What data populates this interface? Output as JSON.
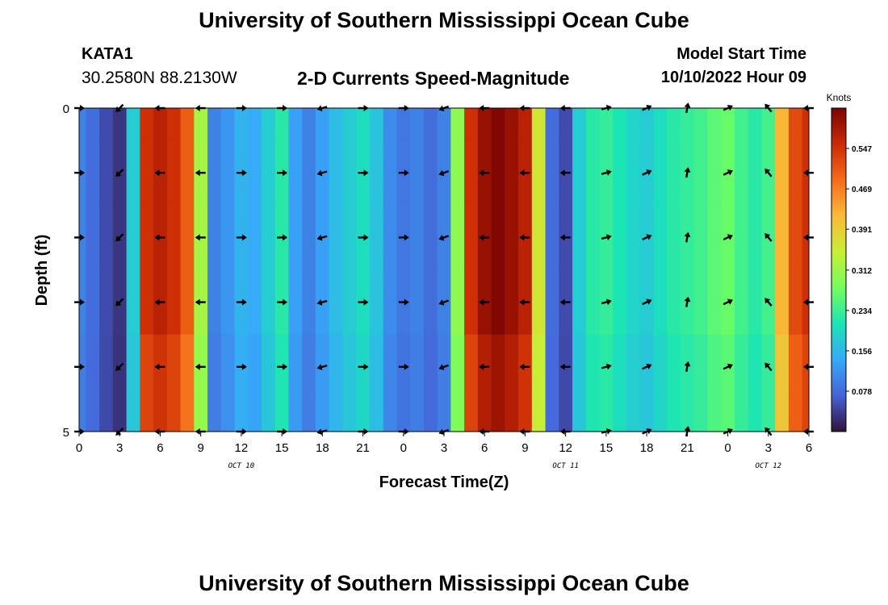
{
  "header": {
    "title": "University of Southern Mississippi Ocean Cube",
    "station_id": "KATA1",
    "coordinates": "30.2580N  88.2130W",
    "subtitle": "2-D Currents Speed-Magnitude",
    "model_start_label": "Model Start Time",
    "model_start_value": "10/10/2022 Hour 09"
  },
  "footer": {
    "title": "University of Southern Mississippi Ocean Cube"
  },
  "colors": {
    "colormap": [
      "#30123b",
      "#4662d7",
      "#36aaf9",
      "#1ae4b6",
      "#72fe5e",
      "#c8ef34",
      "#faba39",
      "#f66b19",
      "#ca2a04",
      "#7a0403"
    ],
    "arrow": "#000000",
    "axis": "#000000"
  },
  "chart_data": {
    "type": "heatmap",
    "title": "2-D Currents Speed-Magnitude",
    "xlabel": "Forecast Time(Z)",
    "ylabel": "Depth (ft)",
    "xlim": [
      0,
      54
    ],
    "ylim": [
      0,
      5
    ],
    "x_ticks": [
      0,
      3,
      6,
      9,
      12,
      15,
      18,
      21,
      24,
      27,
      30,
      33,
      36,
      39,
      42,
      45,
      48,
      51,
      54
    ],
    "x_tick_labels": [
      "0",
      "3",
      "6",
      "9",
      "12",
      "15",
      "18",
      "21",
      "0",
      "3",
      "6",
      "9",
      "12",
      "15",
      "18",
      "21",
      "0",
      "3",
      "6"
    ],
    "y_ticks": [
      0,
      5
    ],
    "y_tick_labels": [
      "0",
      "5"
    ],
    "date_labels": [
      {
        "hour": 12,
        "text": "OCT 10"
      },
      {
        "hour": 36,
        "text": "OCT 11"
      },
      {
        "hour": 51,
        "text": "OCT 12"
      }
    ],
    "colorbar": {
      "label": "Knots",
      "min": 0.0,
      "max": 0.625,
      "ticks": [
        0.078,
        0.156,
        0.234,
        0.312,
        0.391,
        0.469,
        0.547
      ]
    },
    "depth_rows": [
      0,
      1,
      2,
      3,
      4,
      5
    ],
    "speed_by_hour": [
      {
        "hour": 0,
        "speed": 0.1
      },
      {
        "hour": 1,
        "speed": 0.08
      },
      {
        "hour": 2,
        "speed": 0.05
      },
      {
        "hour": 3,
        "speed": 0.03
      },
      {
        "hour": 4,
        "speed": 0.18
      },
      {
        "hour": 5,
        "speed": 0.55
      },
      {
        "hour": 6,
        "speed": 0.57
      },
      {
        "hour": 7,
        "speed": 0.55
      },
      {
        "hour": 8,
        "speed": 0.5
      },
      {
        "hour": 9,
        "speed": 0.32
      },
      {
        "hour": 10,
        "speed": 0.1
      },
      {
        "hour": 11,
        "speed": 0.12
      },
      {
        "hour": 12,
        "speed": 0.15
      },
      {
        "hour": 13,
        "speed": 0.14
      },
      {
        "hour": 14,
        "speed": 0.18
      },
      {
        "hour": 15,
        "speed": 0.22
      },
      {
        "hour": 16,
        "speed": 0.13
      },
      {
        "hour": 17,
        "speed": 0.1
      },
      {
        "hour": 18,
        "speed": 0.13
      },
      {
        "hour": 19,
        "speed": 0.16
      },
      {
        "hour": 20,
        "speed": 0.18
      },
      {
        "hour": 21,
        "speed": 0.2
      },
      {
        "hour": 22,
        "speed": 0.17
      },
      {
        "hour": 23,
        "speed": 0.11
      },
      {
        "hour": 24,
        "speed": 0.09
      },
      {
        "hour": 25,
        "speed": 0.1
      },
      {
        "hour": 26,
        "speed": 0.08
      },
      {
        "hour": 27,
        "speed": 0.1
      },
      {
        "hour": 28,
        "speed": 0.3
      },
      {
        "hour": 29,
        "speed": 0.55
      },
      {
        "hour": 30,
        "speed": 0.6
      },
      {
        "hour": 31,
        "speed": 0.62
      },
      {
        "hour": 32,
        "speed": 0.6
      },
      {
        "hour": 33,
        "speed": 0.57
      },
      {
        "hour": 34,
        "speed": 0.36
      },
      {
        "hour": 35,
        "speed": 0.08
      },
      {
        "hour": 36,
        "speed": 0.05
      },
      {
        "hour": 37,
        "speed": 0.18
      },
      {
        "hour": 38,
        "speed": 0.22
      },
      {
        "hour": 39,
        "speed": 0.23
      },
      {
        "hour": 40,
        "speed": 0.21
      },
      {
        "hour": 41,
        "speed": 0.19
      },
      {
        "hour": 42,
        "speed": 0.18
      },
      {
        "hour": 43,
        "speed": 0.2
      },
      {
        "hour": 44,
        "speed": 0.22
      },
      {
        "hour": 45,
        "speed": 0.23
      },
      {
        "hour": 46,
        "speed": 0.24
      },
      {
        "hour": 47,
        "speed": 0.26
      },
      {
        "hour": 48,
        "speed": 0.27
      },
      {
        "hour": 49,
        "speed": 0.24
      },
      {
        "hour": 50,
        "speed": 0.22
      },
      {
        "hour": 51,
        "speed": 0.24
      },
      {
        "hour": 52,
        "speed": 0.42
      },
      {
        "hour": 53,
        "speed": 0.52
      },
      {
        "hour": 54,
        "speed": 0.55
      }
    ],
    "arrows": [
      {
        "hour": 0,
        "dir_deg": 0
      },
      {
        "hour": 3,
        "dir_deg": 225
      },
      {
        "hour": 6,
        "dir_deg": 180
      },
      {
        "hour": 9,
        "dir_deg": 180
      },
      {
        "hour": 12,
        "dir_deg": 0
      },
      {
        "hour": 15,
        "dir_deg": 0
      },
      {
        "hour": 18,
        "dir_deg": 195
      },
      {
        "hour": 21,
        "dir_deg": 0
      },
      {
        "hour": 24,
        "dir_deg": 0
      },
      {
        "hour": 27,
        "dir_deg": 200
      },
      {
        "hour": 30,
        "dir_deg": 180
      },
      {
        "hour": 33,
        "dir_deg": 180
      },
      {
        "hour": 36,
        "dir_deg": 180
      },
      {
        "hour": 39,
        "dir_deg": 15
      },
      {
        "hour": 42,
        "dir_deg": 25
      },
      {
        "hour": 45,
        "dir_deg": 80
      },
      {
        "hour": 48,
        "dir_deg": 25
      },
      {
        "hour": 51,
        "dir_deg": 130
      },
      {
        "hour": 54,
        "dir_deg": 180
      }
    ]
  }
}
